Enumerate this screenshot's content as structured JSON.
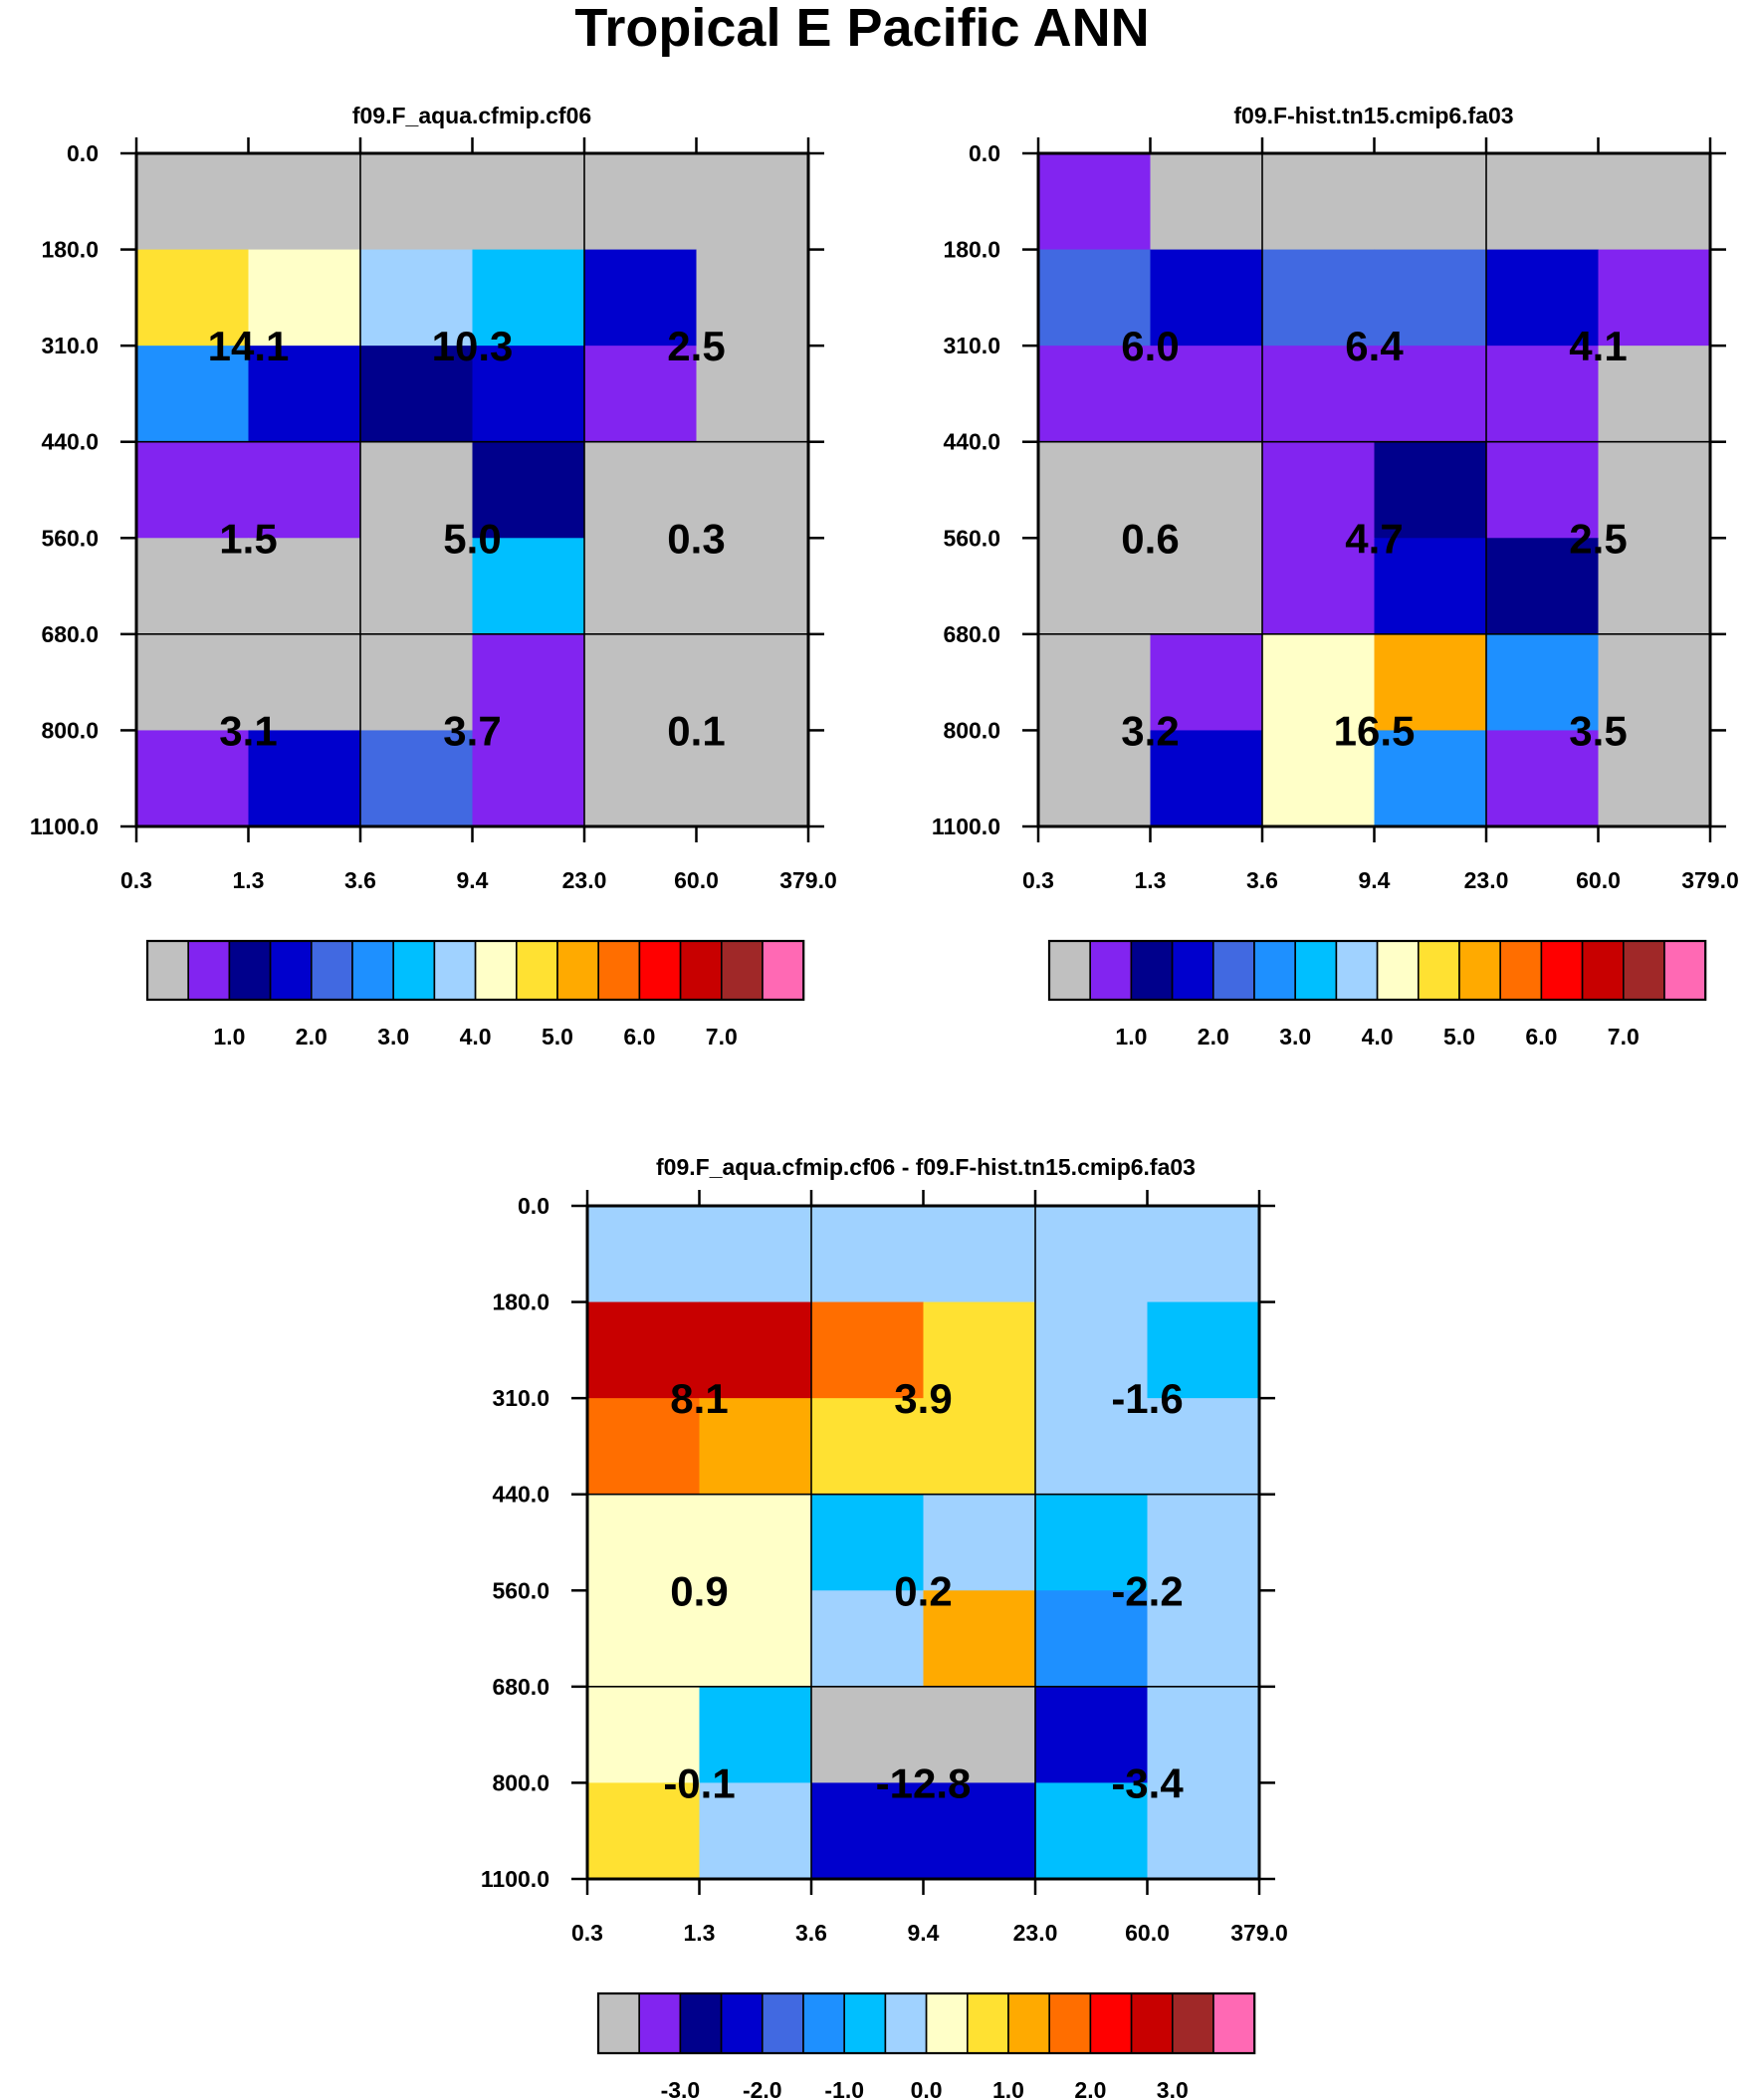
{
  "title": "Tropical E Pacific ANN",
  "colors": {
    "palette": [
      "#c0c0c0",
      "#8224f0",
      "#00008c",
      "#0000cd",
      "#4169e1",
      "#1e90ff",
      "#00bfff",
      "#a0d2ff",
      "#ffffc8",
      "#ffe132",
      "#ffaa00",
      "#ff6e00",
      "#ff0000",
      "#c80000",
      "#a02828",
      "#ff69b4"
    ],
    "grid": "#000000",
    "text": "#000000"
  },
  "chart_data": [
    {
      "type": "heatmap",
      "id": "panel-a",
      "title": "f09.F_aqua.cfmip.cf06",
      "x_ticks": [
        "0.3",
        "1.3",
        "3.6",
        "9.4",
        "23.0",
        "60.0",
        "379.0"
      ],
      "y_ticks": [
        "0.0",
        "180.0",
        "310.0",
        "440.0",
        "560.0",
        "680.0",
        "800.0",
        "1100.0"
      ],
      "cells": [
        [
          0,
          0,
          0,
          0,
          0,
          0
        ],
        [
          9,
          8,
          7,
          6,
          3,
          0
        ],
        [
          5,
          3,
          2,
          3,
          1,
          0
        ],
        [
          1,
          1,
          0,
          2,
          0,
          0
        ],
        [
          0,
          0,
          0,
          6,
          0,
          0
        ],
        [
          0,
          0,
          0,
          1,
          0,
          0
        ],
        [
          1,
          3,
          4,
          1,
          0,
          0
        ]
      ],
      "box_values": [
        [
          "14.1",
          "10.3",
          "2.5"
        ],
        [
          "1.5",
          "5.0",
          "0.3"
        ],
        [
          "3.1",
          "3.7",
          "0.1"
        ]
      ],
      "colorbar_labels": [
        "1.0",
        "2.0",
        "3.0",
        "4.0",
        "5.0",
        "6.0",
        "7.0"
      ]
    },
    {
      "type": "heatmap",
      "id": "panel-b",
      "title": "f09.F-hist.tn15.cmip6.fa03",
      "x_ticks": [
        "0.3",
        "1.3",
        "3.6",
        "9.4",
        "23.0",
        "60.0",
        "379.0"
      ],
      "y_ticks": [
        "0.0",
        "180.0",
        "310.0",
        "440.0",
        "560.0",
        "680.0",
        "800.0",
        "1100.0"
      ],
      "cells": [
        [
          1,
          0,
          0,
          0,
          0,
          0
        ],
        [
          4,
          3,
          4,
          4,
          3,
          1
        ],
        [
          1,
          1,
          1,
          1,
          1,
          0
        ],
        [
          0,
          0,
          1,
          2,
          1,
          0
        ],
        [
          0,
          0,
          1,
          3,
          2,
          0
        ],
        [
          0,
          1,
          8,
          10,
          5,
          0
        ],
        [
          0,
          3,
          8,
          5,
          1,
          0
        ]
      ],
      "box_values": [
        [
          "6.0",
          "6.4",
          "4.1"
        ],
        [
          "0.6",
          "4.7",
          "2.5"
        ],
        [
          "3.2",
          "16.5",
          "3.5"
        ]
      ],
      "colorbar_labels": [
        "1.0",
        "2.0",
        "3.0",
        "4.0",
        "5.0",
        "6.0",
        "7.0"
      ]
    },
    {
      "type": "heatmap",
      "id": "panel-diff",
      "title": "f09.F_aqua.cfmip.cf06 - f09.F-hist.tn15.cmip6.fa03",
      "x_ticks": [
        "0.3",
        "1.3",
        "3.6",
        "9.4",
        "23.0",
        "60.0",
        "379.0"
      ],
      "y_ticks": [
        "0.0",
        "180.0",
        "310.0",
        "440.0",
        "560.0",
        "680.0",
        "800.0",
        "1100.0"
      ],
      "cells": [
        [
          7,
          7,
          7,
          7,
          7,
          7
        ],
        [
          13,
          13,
          11,
          9,
          7,
          6
        ],
        [
          11,
          10,
          9,
          9,
          7,
          7
        ],
        [
          8,
          8,
          6,
          7,
          6,
          7
        ],
        [
          8,
          8,
          7,
          10,
          5,
          7
        ],
        [
          8,
          6,
          0,
          0,
          3,
          7
        ],
        [
          9,
          7,
          3,
          3,
          6,
          7
        ]
      ],
      "box_values": [
        [
          "8.1",
          "3.9",
          "-1.6"
        ],
        [
          "0.9",
          "0.2",
          "-2.2"
        ],
        [
          "-0.1",
          "-12.8",
          "-3.4"
        ]
      ],
      "colorbar_labels": [
        "-3.0",
        "-2.0",
        "-1.0",
        "0.0",
        "1.0",
        "2.0",
        "3.0"
      ]
    }
  ]
}
